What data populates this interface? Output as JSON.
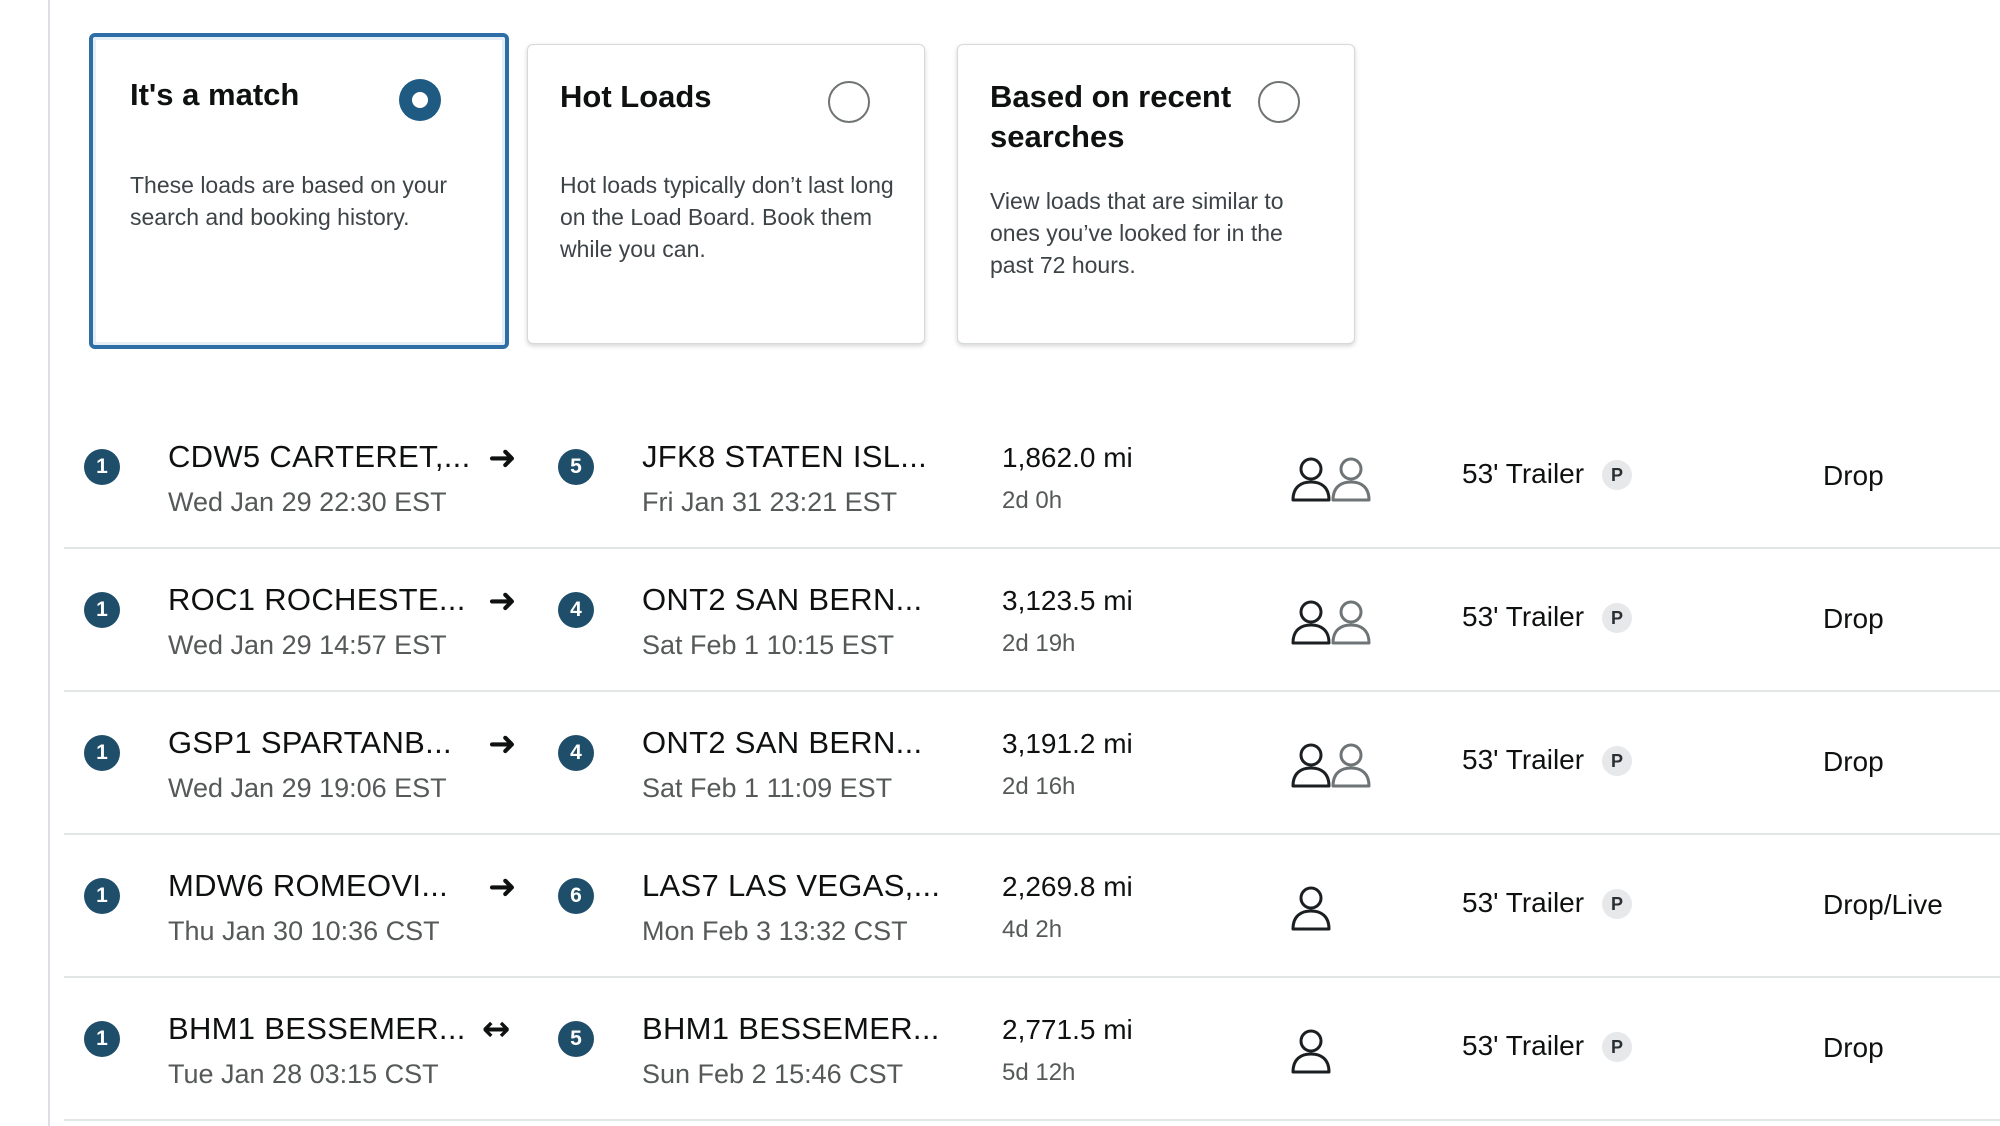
{
  "filter_cards": [
    {
      "title": "It's a match",
      "description": "These loads are based on your search and booking history.",
      "selected": true
    },
    {
      "title": "Hot Loads",
      "description": "Hot loads typically don’t last long on the Load Board. Book them while you can.",
      "selected": false
    },
    {
      "title": "Based on recent searches",
      "description": "View loads that are similar to ones you’ve looked for in the past 72 hours.",
      "selected": false
    }
  ],
  "loads": [
    {
      "origin_stop": "1",
      "origin": "CDW5 CARTERET,...",
      "origin_time": "Wed Jan 29 22:30 EST",
      "direction_icon": "arrow-right-icon",
      "direction_glyph": "➜",
      "dest_stops": "5",
      "destination": "JFK8 STATEN ISL...",
      "dest_time": "Fri Jan 31 23:21 EST",
      "distance": "1,862.0 mi",
      "duration": "2d 0h",
      "drivers": "team",
      "equipment": "53' Trailer",
      "equipment_badge": "P",
      "load_type": "Drop"
    },
    {
      "origin_stop": "1",
      "origin": "ROC1 ROCHESTE...",
      "origin_time": "Wed Jan 29 14:57 EST",
      "direction_icon": "arrow-right-icon",
      "direction_glyph": "➜",
      "dest_stops": "4",
      "destination": "ONT2 SAN BERN...",
      "dest_time": "Sat Feb 1 10:15 EST",
      "distance": "3,123.5 mi",
      "duration": "2d 19h",
      "drivers": "team",
      "equipment": "53' Trailer",
      "equipment_badge": "P",
      "load_type": "Drop"
    },
    {
      "origin_stop": "1",
      "origin": "GSP1 SPARTANB...",
      "origin_time": "Wed Jan 29 19:06 EST",
      "direction_icon": "arrow-right-icon",
      "direction_glyph": "➜",
      "dest_stops": "4",
      "destination": "ONT2 SAN BERN...",
      "dest_time": "Sat Feb 1 11:09 EST",
      "distance": "3,191.2 mi",
      "duration": "2d 16h",
      "drivers": "team",
      "equipment": "53' Trailer",
      "equipment_badge": "P",
      "load_type": "Drop"
    },
    {
      "origin_stop": "1",
      "origin": "MDW6 ROMEOVI...",
      "origin_time": "Thu Jan 30 10:36 CST",
      "direction_icon": "arrow-right-icon",
      "direction_glyph": "➜",
      "dest_stops": "6",
      "destination": "LAS7 LAS VEGAS,...",
      "dest_time": "Mon Feb 3 13:32 CST",
      "distance": "2,269.8 mi",
      "duration": "4d 2h",
      "drivers": "solo",
      "equipment": "53' Trailer",
      "equipment_badge": "P",
      "load_type": "Drop/Live"
    },
    {
      "origin_stop": "1",
      "origin": "BHM1 BESSEMER...",
      "origin_time": "Tue Jan 28 03:15 CST",
      "direction_icon": "round-trip-icon",
      "direction_glyph": "↔",
      "dest_stops": "5",
      "destination": "BHM1 BESSEMER...",
      "dest_time": "Sun Feb 2 15:46 CST",
      "distance": "2,771.5 mi",
      "duration": "5d 12h",
      "drivers": "solo",
      "equipment": "53' Trailer",
      "equipment_badge": "P",
      "load_type": "Drop"
    }
  ],
  "colors": {
    "selected_border": "#2e6ea6",
    "badge": "#1f4e6b",
    "divider": "#e3e6e6"
  }
}
